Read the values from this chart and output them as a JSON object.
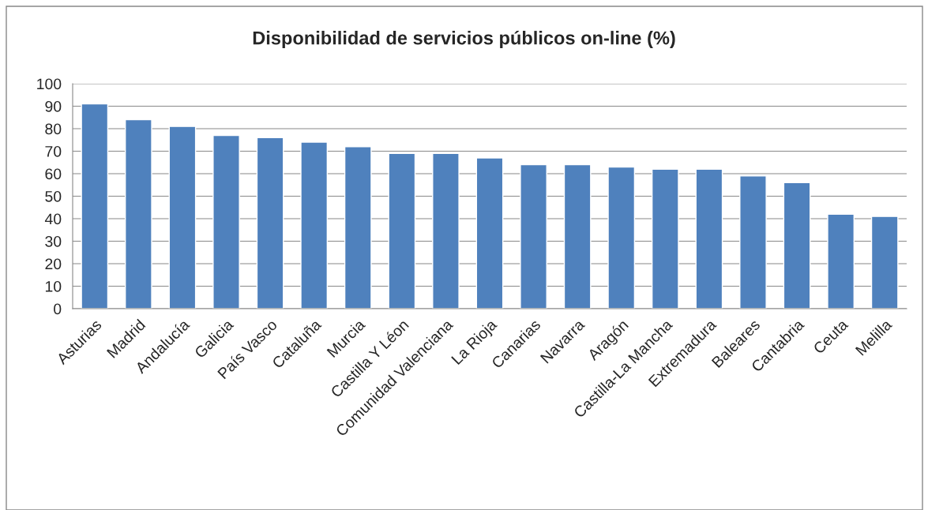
{
  "chart_data": {
    "type": "bar",
    "title": "Disponibilidad de servicios públicos on-line (%)",
    "categories": [
      "Asturias",
      "Madrid",
      "Andalucía",
      "Galicia",
      "País Vasco",
      "Cataluña",
      "Murcia",
      "Castilla Y Léon",
      "Comunidad Valenciana",
      "La Rioja",
      "Canarias",
      "Navarra",
      "Aragón",
      "Castilla-La Mancha",
      "Extremadura",
      "Baleares",
      "Cantabria",
      "Ceuta",
      "Melilla"
    ],
    "values": [
      91,
      84,
      81,
      77,
      76,
      74,
      72,
      69,
      69,
      67,
      64,
      64,
      63,
      62,
      62,
      59,
      56,
      42,
      41
    ],
    "color": "#4f81bd",
    "ylim": [
      0,
      100
    ],
    "yticks": [
      0,
      10,
      20,
      30,
      40,
      50,
      60,
      70,
      80,
      90,
      100
    ],
    "grid": "y"
  }
}
